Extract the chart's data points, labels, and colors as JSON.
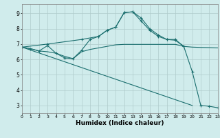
{
  "xlabel": "Humidex (Indice chaleur)",
  "bg_color": "#d0ecec",
  "grid_color": "#b0cccc",
  "line_color": "#1a6e6e",
  "xlim": [
    0,
    23
  ],
  "ylim": [
    2.5,
    9.6
  ],
  "xtick_vals": [
    0,
    1,
    2,
    3,
    4,
    5,
    6,
    7,
    8,
    9,
    10,
    11,
    12,
    13,
    14,
    15,
    16,
    17,
    18,
    19,
    20,
    21,
    22,
    23
  ],
  "ytick_vals": [
    3,
    4,
    5,
    6,
    7,
    8,
    9
  ],
  "series": [
    {
      "x": [
        0,
        1,
        2,
        3,
        4,
        5,
        6,
        7,
        8,
        9,
        10,
        11,
        12,
        13,
        14,
        15,
        16,
        17,
        18,
        19,
        20,
        21,
        22,
        23
      ],
      "y": [
        6.8,
        6.7,
        6.55,
        6.9,
        6.4,
        6.1,
        6.05,
        6.6,
        7.3,
        7.5,
        7.9,
        8.1,
        9.05,
        9.1,
        8.7,
        8.0,
        7.6,
        7.3,
        7.3,
        6.85,
        5.2,
        3.0,
        2.95,
        2.85
      ],
      "markers": true
    },
    {
      "x": [
        0,
        20
      ],
      "y": [
        6.8,
        3.0
      ],
      "markers": false
    },
    {
      "x": [
        0,
        1,
        2,
        3,
        4,
        5,
        6,
        7,
        8,
        9,
        10,
        11,
        12,
        13,
        14,
        15,
        16,
        17,
        18,
        19,
        20,
        21,
        22,
        23
      ],
      "y": [
        6.8,
        6.7,
        6.55,
        6.5,
        6.4,
        6.2,
        6.05,
        6.5,
        6.65,
        6.75,
        6.85,
        6.95,
        6.98,
        6.98,
        6.98,
        6.98,
        6.98,
        6.98,
        6.98,
        6.85,
        6.8,
        6.78,
        6.77,
        6.75
      ],
      "markers": false
    },
    {
      "x": [
        0,
        3,
        7,
        9,
        10,
        11,
        12,
        13,
        14,
        15,
        16,
        17,
        18,
        19
      ],
      "y": [
        6.8,
        7.0,
        7.3,
        7.5,
        7.9,
        8.1,
        9.05,
        9.1,
        8.5,
        7.9,
        7.5,
        7.3,
        7.25,
        6.85
      ],
      "markers": true
    }
  ]
}
